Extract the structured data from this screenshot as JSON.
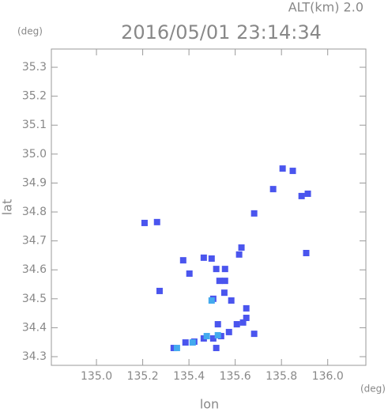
{
  "chart_data": {
    "type": "scatter",
    "title": "2016/05/01 23:14:34",
    "subtitle": "ALT(km) 2.0",
    "y_unit": "(deg)",
    "x_unit": "(deg)",
    "x_label": "lon",
    "y_label": "lat",
    "xlim": [
      134.805,
      136.165
    ],
    "ylim": [
      34.27,
      35.363
    ],
    "xticks": [
      {
        "value": 135.0,
        "label": "135.0"
      },
      135.2,
      135.4,
      135.6,
      135.8,
      {
        "value": 136.0,
        "label": "136.0"
      }
    ],
    "yticks": [
      34.3,
      34.4,
      34.5,
      34.6,
      34.7,
      34.8,
      34.9,
      {
        "value": 35.0,
        "label": "35.0"
      },
      35.1,
      35.2,
      35.3
    ],
    "series": [
      {
        "color": "#4a55ee",
        "x": [
          135.208,
          135.262,
          135.273,
          135.375,
          135.402,
          135.464,
          135.498,
          135.518,
          135.532,
          135.556,
          135.553,
          135.505,
          135.583,
          135.617,
          135.627,
          135.556,
          135.648,
          135.634,
          135.607,
          135.648,
          135.525,
          135.573,
          135.539,
          135.505,
          135.464,
          135.423,
          135.385,
          135.334,
          135.518,
          135.682,
          135.764,
          135.805,
          135.849,
          135.914,
          135.887,
          135.907,
          135.682
        ],
        "y": [
          34.762,
          34.765,
          34.527,
          34.633,
          34.587,
          34.642,
          34.639,
          34.603,
          34.562,
          34.562,
          34.521,
          34.5,
          34.494,
          34.653,
          34.677,
          34.603,
          34.467,
          34.418,
          34.412,
          34.434,
          34.412,
          34.385,
          34.371,
          34.363,
          34.363,
          34.352,
          34.349,
          34.33,
          34.33,
          34.379,
          34.879,
          34.95,
          34.942,
          34.863,
          34.855,
          34.658,
          34.795
        ]
      },
      {
        "color": "#44aaee",
        "x": [
          135.498,
          135.477,
          135.525,
          135.348,
          135.416
        ],
        "y": [
          34.494,
          34.371,
          34.374,
          34.33,
          34.349
        ]
      }
    ]
  }
}
